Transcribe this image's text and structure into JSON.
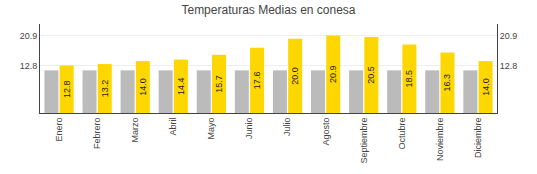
{
  "chart_data": {
    "type": "bar",
    "title": "Temperaturas Medias en conesa",
    "categories": [
      "Enero",
      "Febrero",
      "Marzo",
      "Abril",
      "Mayo",
      "Junio",
      "Julio",
      "Agosto",
      "Septiembre",
      "Octubre",
      "Noviembre",
      "Diciembre"
    ],
    "series": [
      {
        "color": "#BBBBBB",
        "values": [
          11.5,
          11.5,
          11.5,
          11.5,
          11.5,
          11.5,
          11.5,
          11.5,
          11.5,
          11.5,
          11.5,
          11.5
        ]
      },
      {
        "color": "#FFD700",
        "values": [
          12.8,
          13.2,
          14.0,
          14.4,
          15.7,
          17.6,
          20.0,
          20.9,
          20.5,
          18.5,
          16.3,
          14.0
        ],
        "value_labels": [
          "12.8",
          "13.2",
          "14.0",
          "14.4",
          "15.7",
          "17.6",
          "20.0",
          "20.9",
          "20.5",
          "18.5",
          "16.3",
          "14.0"
        ],
        "data_labels": true
      }
    ],
    "ylim": [
      0,
      24.0
    ],
    "yticks": [
      12.8,
      20.9
    ],
    "y2lim": [
      0,
      24.0
    ],
    "y2ticks": [
      12.8,
      20.9
    ],
    "grid": true,
    "legend": false
  }
}
